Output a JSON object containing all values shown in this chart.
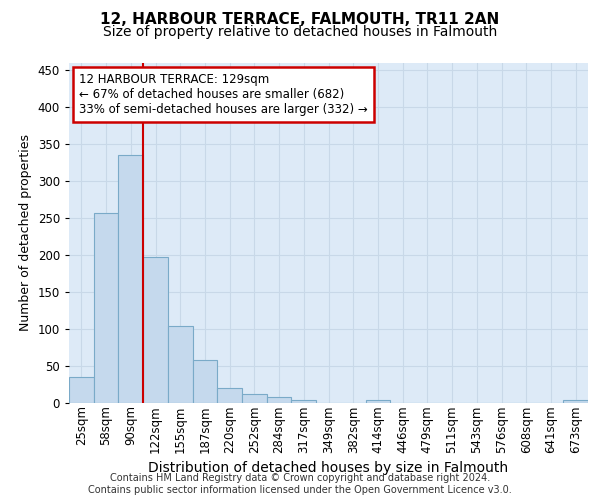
{
  "title": "12, HARBOUR TERRACE, FALMOUTH, TR11 2AN",
  "subtitle": "Size of property relative to detached houses in Falmouth",
  "xlabel": "Distribution of detached houses by size in Falmouth",
  "ylabel": "Number of detached properties",
  "footer_line1": "Contains HM Land Registry data © Crown copyright and database right 2024.",
  "footer_line2": "Contains public sector information licensed under the Open Government Licence v3.0.",
  "bar_labels": [
    "25sqm",
    "58sqm",
    "90sqm",
    "122sqm",
    "155sqm",
    "187sqm",
    "220sqm",
    "252sqm",
    "284sqm",
    "317sqm",
    "349sqm",
    "382sqm",
    "414sqm",
    "446sqm",
    "479sqm",
    "511sqm",
    "543sqm",
    "576sqm",
    "608sqm",
    "641sqm",
    "673sqm"
  ],
  "bar_values": [
    35,
    256,
    335,
    197,
    104,
    57,
    20,
    11,
    7,
    4,
    0,
    0,
    4,
    0,
    0,
    0,
    0,
    0,
    0,
    0,
    4
  ],
  "bar_color": "#c5d9ed",
  "bar_edge_color": "#7aaac8",
  "grid_color": "#c8d8e8",
  "annotation_text": "12 HARBOUR TERRACE: 129sqm\n← 67% of detached houses are smaller (682)\n33% of semi-detached houses are larger (332) →",
  "annotation_box_color": "#ffffff",
  "annotation_box_edge_color": "#cc0000",
  "vline_color": "#cc0000",
  "vline_x": 2.5,
  "ylim": [
    0,
    460
  ],
  "yticks": [
    0,
    50,
    100,
    150,
    200,
    250,
    300,
    350,
    400,
    450
  ],
  "background_color": "#ddeaf7",
  "plot_bg_color": "#ddeaf7",
  "title_fontsize": 11,
  "subtitle_fontsize": 10,
  "ylabel_fontsize": 9,
  "xlabel_fontsize": 10,
  "tick_fontsize": 8.5,
  "ann_fontsize": 8.5,
  "footer_fontsize": 7
}
